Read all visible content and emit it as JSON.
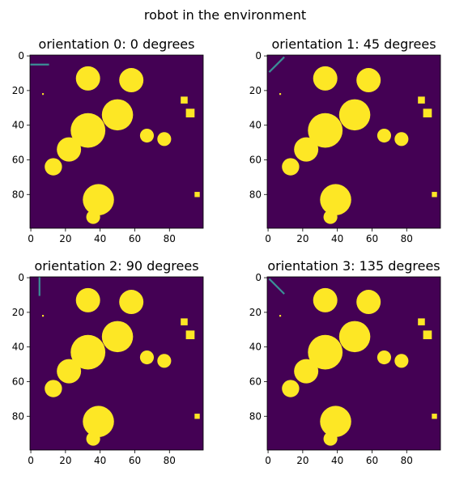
{
  "figure": {
    "suptitle": "robot in the environment"
  },
  "colors": {
    "background": "#440154",
    "obstacle": "#fde725",
    "robot": "#3b8f96"
  },
  "chart_data": [
    {
      "type": "heatmap",
      "title": "orientation 0: 0 degrees",
      "grid_size": 100,
      "xlim": [
        0,
        99
      ],
      "ylim": [
        99,
        0
      ],
      "xticks": [
        "0",
        "20",
        "40",
        "60",
        "80"
      ],
      "yticks": [
        "0",
        "20",
        "40",
        "60",
        "80"
      ],
      "robot": {
        "x1": 0,
        "y1": 5,
        "x2": 10,
        "y2": 5
      }
    },
    {
      "type": "heatmap",
      "title": "orientation 1: 45 degrees",
      "grid_size": 100,
      "xlim": [
        0,
        99
      ],
      "ylim": [
        99,
        0
      ],
      "xticks": [
        "0",
        "20",
        "40",
        "60",
        "80"
      ],
      "yticks": [
        "0",
        "20",
        "40",
        "60",
        "80"
      ],
      "robot": {
        "x1": 1,
        "y1": 9,
        "x2": 9,
        "y2": 1
      }
    },
    {
      "type": "heatmap",
      "title": "orientation 2: 90 degrees",
      "grid_size": 100,
      "xlim": [
        0,
        99
      ],
      "ylim": [
        99,
        0
      ],
      "xticks": [
        "0",
        "20",
        "40",
        "60",
        "80"
      ],
      "yticks": [
        "0",
        "20",
        "40",
        "60",
        "80"
      ],
      "robot": {
        "x1": 5,
        "y1": 0,
        "x2": 5,
        "y2": 10
      }
    },
    {
      "type": "heatmap",
      "title": "orientation 3: 135 degrees",
      "grid_size": 100,
      "xlim": [
        0,
        99
      ],
      "ylim": [
        99,
        0
      ],
      "xticks": [
        "0",
        "20",
        "40",
        "60",
        "80"
      ],
      "yticks": [
        "0",
        "20",
        "40",
        "60",
        "80"
      ],
      "robot": {
        "x1": 1,
        "y1": 1,
        "x2": 9,
        "y2": 9
      }
    }
  ],
  "obstacles": {
    "circles": [
      {
        "cx": 33,
        "cy": 13,
        "r": 7
      },
      {
        "cx": 58,
        "cy": 14,
        "r": 7
      },
      {
        "cx": 33,
        "cy": 43,
        "r": 10
      },
      {
        "cx": 50,
        "cy": 34,
        "r": 9
      },
      {
        "cx": 22,
        "cy": 54,
        "r": 7
      },
      {
        "cx": 13,
        "cy": 64,
        "r": 5
      },
      {
        "cx": 67,
        "cy": 46,
        "r": 4
      },
      {
        "cx": 77,
        "cy": 48,
        "r": 4
      },
      {
        "cx": 39,
        "cy": 83,
        "r": 9
      },
      {
        "cx": 36,
        "cy": 93,
        "r": 4
      }
    ],
    "rects": [
      {
        "x": 87,
        "y": 24,
        "w": 4,
        "h": 4
      },
      {
        "x": 90,
        "y": 31,
        "w": 5,
        "h": 5
      },
      {
        "x": 95,
        "y": 79,
        "w": 3,
        "h": 3
      },
      {
        "x": 7,
        "y": 22,
        "w": 1,
        "h": 1
      }
    ]
  }
}
